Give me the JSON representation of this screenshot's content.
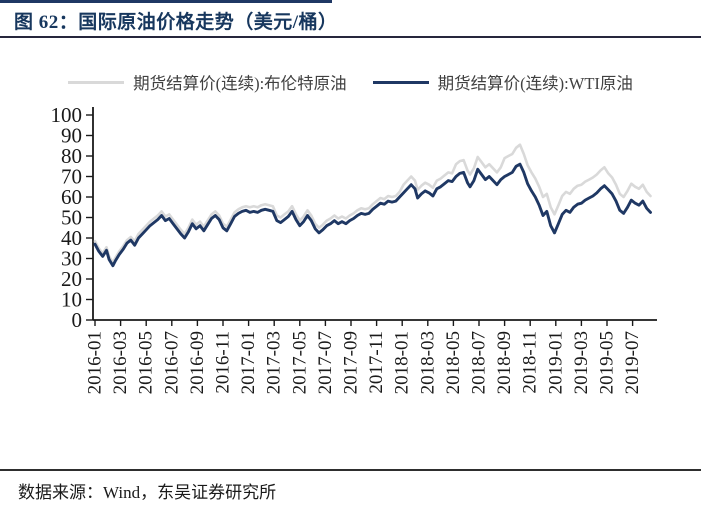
{
  "figure": {
    "title": "图 62：国际原油价格走势（美元/桶）",
    "source_note": "数据来源：Wind，东吴证券研究所"
  },
  "colors": {
    "title_navy": "#17375E",
    "brent_gray": "#D9D9D9",
    "wti_navy": "#1F3864",
    "axis": "#1a1a1a",
    "rule": "#2e2e2e"
  },
  "chart_data": {
    "type": "line",
    "title": "国际原油价格走势（美元/桶）",
    "xlabel": "",
    "ylabel": "",
    "x_unit": "months since 2016-01",
    "xtick_interval_months": 2,
    "xtick_labels": [
      "2016-01",
      "2016-03",
      "2016-05",
      "2016-07",
      "2016-09",
      "2016-11",
      "2017-01",
      "2017-03",
      "2017-05",
      "2017-07",
      "2017-09",
      "2017-11",
      "2018-01",
      "2018-03",
      "2018-05",
      "2018-07",
      "2018-09",
      "2018-11",
      "2019-01",
      "2019-03",
      "2019-05",
      "2019-07"
    ],
    "yticks": [
      0,
      10,
      20,
      30,
      40,
      50,
      60,
      70,
      80,
      90,
      100
    ],
    "ylim": [
      0,
      100
    ],
    "grid": false,
    "legend_position": "top",
    "series": [
      {
        "name": "期货结算价(连续):布伦特原油",
        "color": "#D9D9D9",
        "points": [
          [
            0,
            38.5
          ],
          [
            0.3,
            35
          ],
          [
            0.6,
            32.5
          ],
          [
            0.9,
            35.5
          ],
          [
            1.1,
            31
          ],
          [
            1.4,
            28
          ],
          [
            1.6,
            30.5
          ],
          [
            1.9,
            33.5
          ],
          [
            2.2,
            36
          ],
          [
            2.5,
            39
          ],
          [
            2.8,
            40.5
          ],
          [
            3.1,
            38.5
          ],
          [
            3.4,
            42
          ],
          [
            3.7,
            44
          ],
          [
            4,
            46
          ],
          [
            4.3,
            48
          ],
          [
            4.6,
            49.5
          ],
          [
            4.9,
            51
          ],
          [
            5.2,
            53
          ],
          [
            5.5,
            50.5
          ],
          [
            5.8,
            51.5
          ],
          [
            6.1,
            49
          ],
          [
            6.4,
            46.5
          ],
          [
            6.7,
            44
          ],
          [
            7,
            42
          ],
          [
            7.3,
            45
          ],
          [
            7.6,
            49
          ],
          [
            7.9,
            46.5
          ],
          [
            8.2,
            48
          ],
          [
            8.5,
            45.5
          ],
          [
            8.8,
            48.5
          ],
          [
            9.1,
            51.5
          ],
          [
            9.4,
            53
          ],
          [
            9.7,
            51
          ],
          [
            10,
            47
          ],
          [
            10.3,
            45.5
          ],
          [
            10.6,
            49
          ],
          [
            10.9,
            52.5
          ],
          [
            11.2,
            54
          ],
          [
            11.5,
            55
          ],
          [
            11.8,
            55.5
          ],
          [
            12.1,
            55
          ],
          [
            12.4,
            55.5
          ],
          [
            12.7,
            55
          ],
          [
            13,
            56
          ],
          [
            13.3,
            56.5
          ],
          [
            13.6,
            56
          ],
          [
            13.9,
            55.5
          ],
          [
            14.2,
            51
          ],
          [
            14.5,
            50
          ],
          [
            14.8,
            51.5
          ],
          [
            15.1,
            53
          ],
          [
            15.4,
            55.5
          ],
          [
            15.7,
            51.5
          ],
          [
            16,
            48.5
          ],
          [
            16.3,
            50.5
          ],
          [
            16.6,
            53.5
          ],
          [
            16.9,
            51
          ],
          [
            17.2,
            47
          ],
          [
            17.5,
            45
          ],
          [
            17.8,
            46.5
          ],
          [
            18.1,
            48.5
          ],
          [
            18.4,
            49.5
          ],
          [
            18.7,
            51
          ],
          [
            19,
            49.5
          ],
          [
            19.3,
            50.5
          ],
          [
            19.6,
            49.5
          ],
          [
            19.9,
            51
          ],
          [
            20.2,
            52
          ],
          [
            20.5,
            53.5
          ],
          [
            20.8,
            54.5
          ],
          [
            21.1,
            54
          ],
          [
            21.4,
            54.5
          ],
          [
            21.7,
            56.5
          ],
          [
            22,
            58
          ],
          [
            22.3,
            59.5
          ],
          [
            22.6,
            59
          ],
          [
            22.9,
            60.5
          ],
          [
            23.2,
            60
          ],
          [
            23.5,
            60.5
          ],
          [
            23.8,
            62.5
          ],
          [
            24.1,
            66
          ],
          [
            24.4,
            68
          ],
          [
            24.7,
            70
          ],
          [
            25,
            68
          ],
          [
            25.2,
            63.5
          ],
          [
            25.5,
            65.5
          ],
          [
            25.8,
            67
          ],
          [
            26.1,
            66
          ],
          [
            26.4,
            64.5
          ],
          [
            26.7,
            68
          ],
          [
            27,
            69
          ],
          [
            27.3,
            70.5
          ],
          [
            27.6,
            72
          ],
          [
            27.9,
            71.5
          ],
          [
            28.2,
            76
          ],
          [
            28.5,
            77.5
          ],
          [
            28.8,
            78
          ],
          [
            29.1,
            73
          ],
          [
            29.3,
            71
          ],
          [
            29.6,
            74
          ],
          [
            29.9,
            79.5
          ],
          [
            30.2,
            77
          ],
          [
            30.5,
            74.5
          ],
          [
            30.8,
            76
          ],
          [
            31.1,
            74
          ],
          [
            31.4,
            72
          ],
          [
            31.7,
            74.5
          ],
          [
            32,
            79
          ],
          [
            32.3,
            80
          ],
          [
            32.6,
            81
          ],
          [
            32.9,
            84
          ],
          [
            33.2,
            85.5
          ],
          [
            33.5,
            81
          ],
          [
            33.8,
            75.5
          ],
          [
            34.1,
            72
          ],
          [
            34.4,
            69
          ],
          [
            34.7,
            65
          ],
          [
            35,
            60
          ],
          [
            35.3,
            61.5
          ],
          [
            35.6,
            55
          ],
          [
            35.9,
            51.5
          ],
          [
            36.2,
            56
          ],
          [
            36.5,
            60.5
          ],
          [
            36.8,
            62.5
          ],
          [
            37.1,
            61.5
          ],
          [
            37.4,
            64
          ],
          [
            37.7,
            65.5
          ],
          [
            38,
            66
          ],
          [
            38.3,
            67.5
          ],
          [
            38.6,
            68.5
          ],
          [
            38.9,
            69.5
          ],
          [
            39.2,
            71
          ],
          [
            39.5,
            73
          ],
          [
            39.8,
            74.5
          ],
          [
            40.1,
            71.5
          ],
          [
            40.4,
            69.5
          ],
          [
            40.7,
            66
          ],
          [
            41,
            61.5
          ],
          [
            41.3,
            60
          ],
          [
            41.6,
            63
          ],
          [
            41.9,
            66.5
          ],
          [
            42.2,
            65
          ],
          [
            42.5,
            64
          ],
          [
            42.8,
            66
          ],
          [
            43.1,
            62.5
          ],
          [
            43.4,
            60.5
          ]
        ]
      },
      {
        "name": "期货结算价(连续):WTI原油",
        "color": "#1F3864",
        "points": [
          [
            0,
            37
          ],
          [
            0.3,
            33.5
          ],
          [
            0.6,
            31
          ],
          [
            0.9,
            34
          ],
          [
            1.1,
            29.5
          ],
          [
            1.4,
            26.5
          ],
          [
            1.6,
            29
          ],
          [
            1.9,
            32
          ],
          [
            2.2,
            34.5
          ],
          [
            2.5,
            37.5
          ],
          [
            2.8,
            39
          ],
          [
            3.1,
            36.5
          ],
          [
            3.4,
            40
          ],
          [
            3.7,
            42
          ],
          [
            4,
            44
          ],
          [
            4.3,
            46
          ],
          [
            4.6,
            47.5
          ],
          [
            4.9,
            49
          ],
          [
            5.2,
            51
          ],
          [
            5.5,
            48.5
          ],
          [
            5.8,
            49.5
          ],
          [
            6.1,
            47
          ],
          [
            6.4,
            44.5
          ],
          [
            6.7,
            42
          ],
          [
            7,
            40
          ],
          [
            7.3,
            43
          ],
          [
            7.6,
            47
          ],
          [
            7.9,
            44.5
          ],
          [
            8.2,
            46
          ],
          [
            8.5,
            43.5
          ],
          [
            8.8,
            46.5
          ],
          [
            9.1,
            49.5
          ],
          [
            9.4,
            51
          ],
          [
            9.7,
            49
          ],
          [
            10,
            45
          ],
          [
            10.3,
            43.5
          ],
          [
            10.6,
            47
          ],
          [
            10.9,
            50.5
          ],
          [
            11.2,
            52
          ],
          [
            11.5,
            53
          ],
          [
            11.8,
            53.5
          ],
          [
            12.1,
            52.5
          ],
          [
            12.4,
            53
          ],
          [
            12.7,
            52.5
          ],
          [
            13,
            53.5
          ],
          [
            13.3,
            54
          ],
          [
            13.6,
            53.5
          ],
          [
            13.9,
            53
          ],
          [
            14.2,
            48.5
          ],
          [
            14.5,
            47.5
          ],
          [
            14.8,
            49
          ],
          [
            15.1,
            50.5
          ],
          [
            15.4,
            53
          ],
          [
            15.7,
            49
          ],
          [
            16,
            46
          ],
          [
            16.3,
            48
          ],
          [
            16.6,
            51
          ],
          [
            16.9,
            48.5
          ],
          [
            17.2,
            44.5
          ],
          [
            17.5,
            42.5
          ],
          [
            17.8,
            44
          ],
          [
            18.1,
            46
          ],
          [
            18.4,
            47
          ],
          [
            18.7,
            48.5
          ],
          [
            19,
            47
          ],
          [
            19.3,
            48
          ],
          [
            19.6,
            47
          ],
          [
            19.9,
            48.5
          ],
          [
            20.2,
            49.5
          ],
          [
            20.5,
            51
          ],
          [
            20.8,
            52
          ],
          [
            21.1,
            51.5
          ],
          [
            21.4,
            52
          ],
          [
            21.7,
            54
          ],
          [
            22,
            55.5
          ],
          [
            22.3,
            57
          ],
          [
            22.6,
            56.5
          ],
          [
            22.9,
            58
          ],
          [
            23.2,
            57.5
          ],
          [
            23.5,
            58
          ],
          [
            23.8,
            60
          ],
          [
            24.1,
            62
          ],
          [
            24.4,
            64
          ],
          [
            24.7,
            66
          ],
          [
            25,
            64
          ],
          [
            25.2,
            59.5
          ],
          [
            25.5,
            61.5
          ],
          [
            25.8,
            63
          ],
          [
            26.1,
            62
          ],
          [
            26.4,
            60.5
          ],
          [
            26.7,
            64
          ],
          [
            27,
            65
          ],
          [
            27.3,
            66.5
          ],
          [
            27.6,
            68
          ],
          [
            27.9,
            67.5
          ],
          [
            28.2,
            70
          ],
          [
            28.5,
            71.5
          ],
          [
            28.8,
            72
          ],
          [
            29.1,
            67
          ],
          [
            29.3,
            65
          ],
          [
            29.6,
            68
          ],
          [
            29.9,
            73.5
          ],
          [
            30.2,
            71
          ],
          [
            30.5,
            68.5
          ],
          [
            30.8,
            70
          ],
          [
            31.1,
            68
          ],
          [
            31.4,
            66
          ],
          [
            31.7,
            68.5
          ],
          [
            32,
            70
          ],
          [
            32.3,
            71
          ],
          [
            32.6,
            72
          ],
          [
            32.9,
            75
          ],
          [
            33.2,
            76
          ],
          [
            33.5,
            72
          ],
          [
            33.8,
            66.5
          ],
          [
            34.1,
            63
          ],
          [
            34.4,
            60
          ],
          [
            34.7,
            56
          ],
          [
            35,
            51
          ],
          [
            35.3,
            53
          ],
          [
            35.6,
            46
          ],
          [
            35.9,
            42.5
          ],
          [
            36.2,
            47
          ],
          [
            36.5,
            51.5
          ],
          [
            36.8,
            53.5
          ],
          [
            37.1,
            52.5
          ],
          [
            37.4,
            55
          ],
          [
            37.7,
            56.5
          ],
          [
            38,
            57
          ],
          [
            38.3,
            58.5
          ],
          [
            38.6,
            59.5
          ],
          [
            38.9,
            60.5
          ],
          [
            39.2,
            62
          ],
          [
            39.5,
            64
          ],
          [
            39.8,
            65.5
          ],
          [
            40.1,
            63.5
          ],
          [
            40.4,
            61.5
          ],
          [
            40.7,
            58
          ],
          [
            41,
            53.5
          ],
          [
            41.3,
            52
          ],
          [
            41.6,
            55
          ],
          [
            41.9,
            58.5
          ],
          [
            42.2,
            57
          ],
          [
            42.5,
            56
          ],
          [
            42.8,
            58
          ],
          [
            43.1,
            54.5
          ],
          [
            43.4,
            52.5
          ]
        ]
      }
    ]
  }
}
